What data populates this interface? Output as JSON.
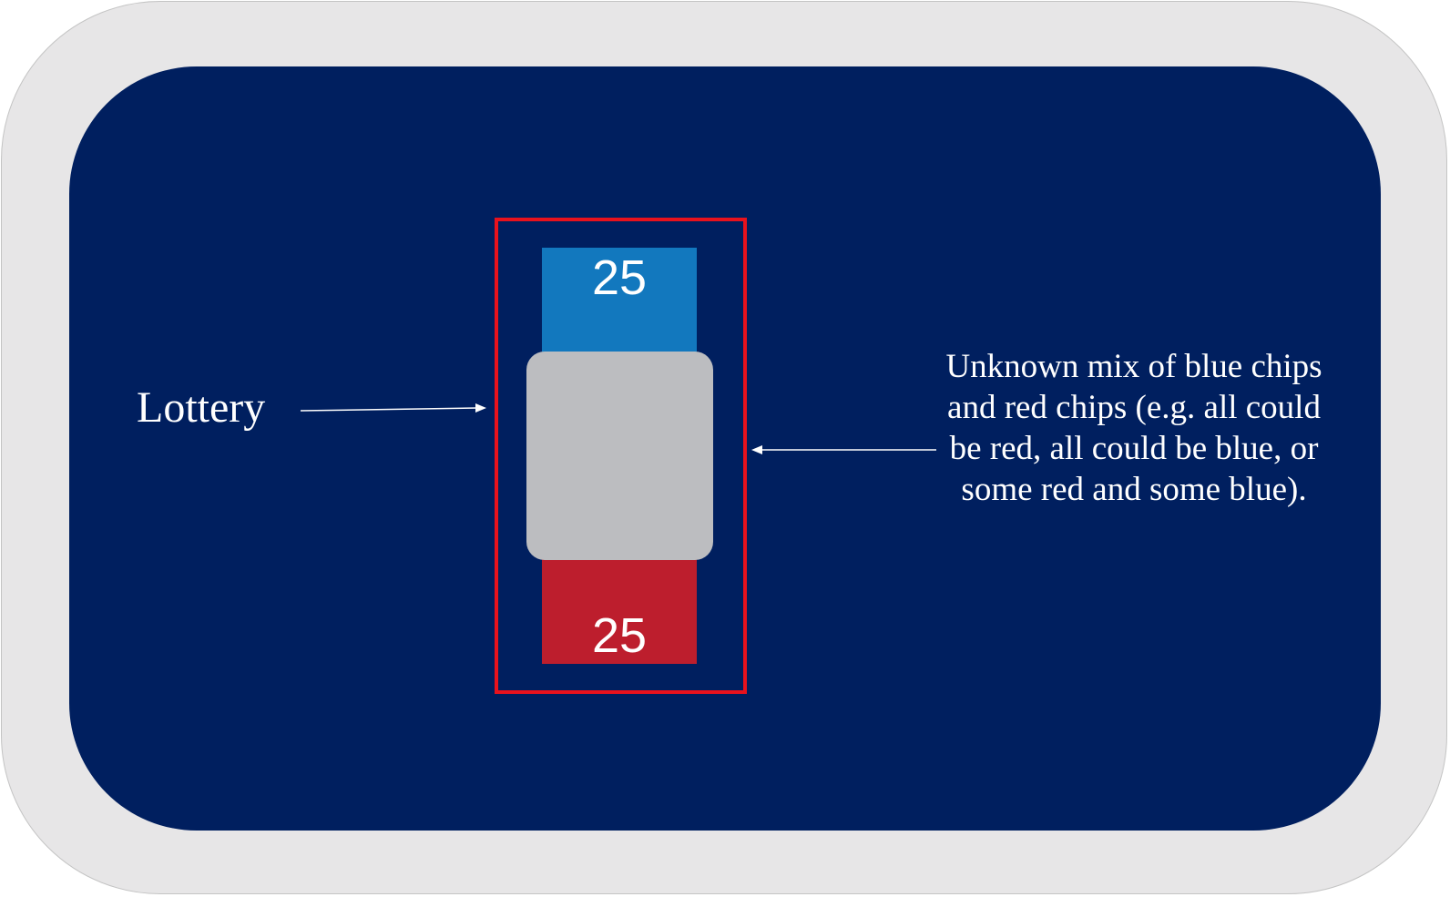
{
  "colors": {
    "outer_frame": "#e7e6e7",
    "inner_panel": "#001f5f",
    "lottery_outline": "#e8121d",
    "blue_chip": "#1278be",
    "red_chip": "#bd1e2d",
    "unknown_cover": "#bcbdc0",
    "text": "#ffffff"
  },
  "diagram": {
    "lottery_label": "Lottery",
    "blue_chip_count": "25",
    "red_chip_count": "25",
    "description": "Unknown mix of blue chips and red chips (e.g. all could be red, all could be blue, or some red and some blue)."
  }
}
